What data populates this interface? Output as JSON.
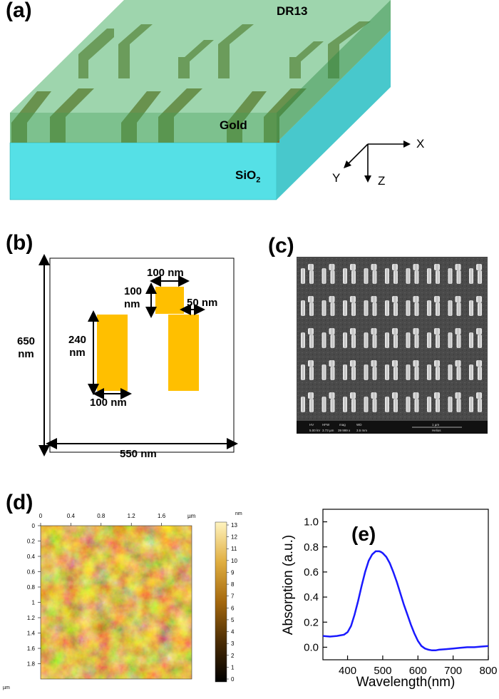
{
  "panels": {
    "a": {
      "label": "(a)",
      "layer_top": "DR13",
      "layer_mid": "Gold",
      "layer_bottom": "SiO",
      "layer_bottom_sub": "2",
      "axis_x": "X",
      "axis_y": "Y",
      "axis_z": "Z",
      "colors": {
        "substrate": "#55dddd",
        "film": "#5cb86e",
        "gold": "#8a6a2e"
      }
    },
    "b": {
      "label": "(b)",
      "dim_height": [
        "650",
        "nm"
      ],
      "dim_width": "550 nm",
      "bar_height": [
        "240",
        "nm"
      ],
      "bar_width": "100 nm",
      "block_width": "100 nm",
      "block_height": [
        "100",
        "nm"
      ],
      "gap": "50 nm",
      "colors": {
        "gold": "#ffbf00"
      }
    },
    "c": {
      "label": "(c)",
      "infobar": [
        "HV",
        "HFW",
        "mag",
        "WD",
        "1 µm",
        "5.00 kV",
        "3.73 µm",
        "39 999 x",
        "3.5 mm",
        "Helios"
      ]
    },
    "d": {
      "label": "(d)",
      "x_ticks": [
        "0",
        "0.4",
        "0.8",
        "1.2",
        "1.6",
        "µm"
      ],
      "y_ticks": [
        "0",
        "0.2",
        "0.4",
        "0.6",
        "0.8",
        "1",
        "1.2",
        "1.4",
        "1.6",
        "1.8"
      ],
      "y_unit": "µm",
      "colorbar_unit": "nm",
      "colorbar_ticks": [
        "13",
        "12",
        "11",
        "10",
        "9",
        "8",
        "7",
        "6",
        "5",
        "4",
        "3",
        "2",
        "1",
        "0"
      ]
    },
    "e": {
      "label": "(e)"
    }
  },
  "chart_data": {
    "type": "line",
    "xlabel": "Wavelength(nm)",
    "ylabel": "Absorption (a.u.)",
    "xlim": [
      330,
      800
    ],
    "ylim": [
      -0.1,
      1.1
    ],
    "x_ticks": [
      "400",
      "500",
      "600",
      "700",
      "800"
    ],
    "y_ticks": [
      "0.0",
      "0.2",
      "0.4",
      "0.6",
      "0.8",
      "1.0"
    ],
    "series": [
      {
        "color": "#1a1aff",
        "x": [
          330,
          350,
          370,
          390,
          400,
          410,
          420,
          430,
          440,
          450,
          460,
          470,
          480,
          490,
          495,
          500,
          510,
          520,
          530,
          540,
          550,
          560,
          570,
          580,
          590,
          600,
          610,
          620,
          630,
          640,
          650,
          660,
          680,
          700,
          720,
          740,
          760,
          780,
          800
        ],
        "y": [
          0.09,
          0.085,
          0.09,
          0.1,
          0.12,
          0.17,
          0.26,
          0.37,
          0.49,
          0.6,
          0.69,
          0.74,
          0.765,
          0.765,
          0.76,
          0.75,
          0.72,
          0.67,
          0.6,
          0.52,
          0.43,
          0.34,
          0.26,
          0.18,
          0.11,
          0.05,
          0.01,
          -0.01,
          -0.02,
          -0.025,
          -0.025,
          -0.02,
          -0.015,
          -0.01,
          -0.005,
          0.0,
          0.0,
          0.005,
          0.01
        ]
      }
    ]
  }
}
